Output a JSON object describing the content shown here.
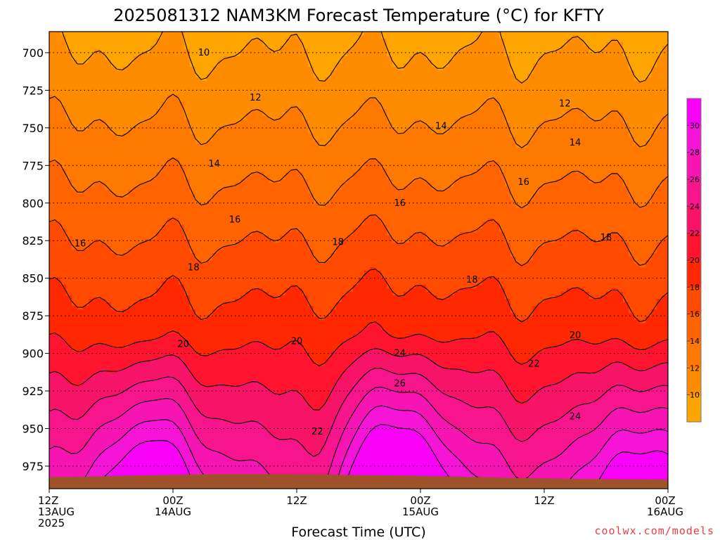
{
  "chart_data": {
    "type": "heatmap",
    "title": "2025081312 NAM3KM Forecast Temperature (°C) for KFTY",
    "xlabel": "Forecast Time (UTC)",
    "ylabel": "",
    "y_axis": {
      "levels": [
        700,
        725,
        750,
        775,
        800,
        825,
        850,
        875,
        900,
        925,
        950,
        975
      ],
      "range_hpa": [
        686,
        990
      ],
      "inverted": true
    },
    "x_axis": {
      "range_hours": [
        0,
        60
      ],
      "ticks": [
        {
          "hour": 0,
          "lines": [
            "12Z",
            "13AUG",
            "2025"
          ]
        },
        {
          "hour": 12,
          "lines": [
            "00Z",
            "14AUG"
          ]
        },
        {
          "hour": 24,
          "lines": [
            "12Z"
          ]
        },
        {
          "hour": 36,
          "lines": [
            "00Z",
            "15AUG"
          ]
        },
        {
          "hour": 48,
          "lines": [
            "12Z"
          ]
        },
        {
          "hour": 60,
          "lines": [
            "00Z",
            "16AUG"
          ]
        }
      ]
    },
    "colorbar": {
      "labels": [
        "10",
        "12",
        "14",
        "16",
        "18",
        "20",
        "22",
        "24",
        "26",
        "28",
        "30"
      ],
      "colors": [
        "#ffa500",
        "#ff8c00",
        "#ff7800",
        "#ff6400",
        "#ff4a00",
        "#ff2800",
        "#ff1430",
        "#f71468",
        "#f7148c",
        "#f614b4",
        "#f614d8",
        "#f900f9"
      ]
    },
    "contour_labels": [
      {
        "text": "10",
        "hour": 15,
        "hpa": 700
      },
      {
        "text": "12",
        "hour": 20,
        "hpa": 730
      },
      {
        "text": "12",
        "hour": 50,
        "hpa": 734
      },
      {
        "text": "14",
        "hour": 16,
        "hpa": 774
      },
      {
        "text": "14",
        "hour": 38,
        "hpa": 749
      },
      {
        "text": "14",
        "hour": 51,
        "hpa": 760
      },
      {
        "text": "16",
        "hour": 3,
        "hpa": 827
      },
      {
        "text": "16",
        "hour": 18,
        "hpa": 811
      },
      {
        "text": "16",
        "hour": 34,
        "hpa": 800
      },
      {
        "text": "16",
        "hour": 46,
        "hpa": 786
      },
      {
        "text": "18",
        "hour": 14,
        "hpa": 843
      },
      {
        "text": "18",
        "hour": 28,
        "hpa": 826
      },
      {
        "text": "18",
        "hour": 41,
        "hpa": 851
      },
      {
        "text": "18",
        "hour": 54,
        "hpa": 823
      },
      {
        "text": "20",
        "hour": 13,
        "hpa": 894
      },
      {
        "text": "20",
        "hour": 24,
        "hpa": 892
      },
      {
        "text": "20",
        "hour": 51,
        "hpa": 888
      },
      {
        "text": "22",
        "hour": 26,
        "hpa": 952
      },
      {
        "text": "22",
        "hour": 47,
        "hpa": 907
      },
      {
        "text": "24",
        "hour": 34,
        "hpa": 900
      },
      {
        "text": "24",
        "hour": 51,
        "hpa": 942
      },
      {
        "text": "26",
        "hour": 34,
        "hpa": 920
      }
    ],
    "grid": true,
    "credit": "coolwx.com/models",
    "ground_color": "#a0522d"
  }
}
